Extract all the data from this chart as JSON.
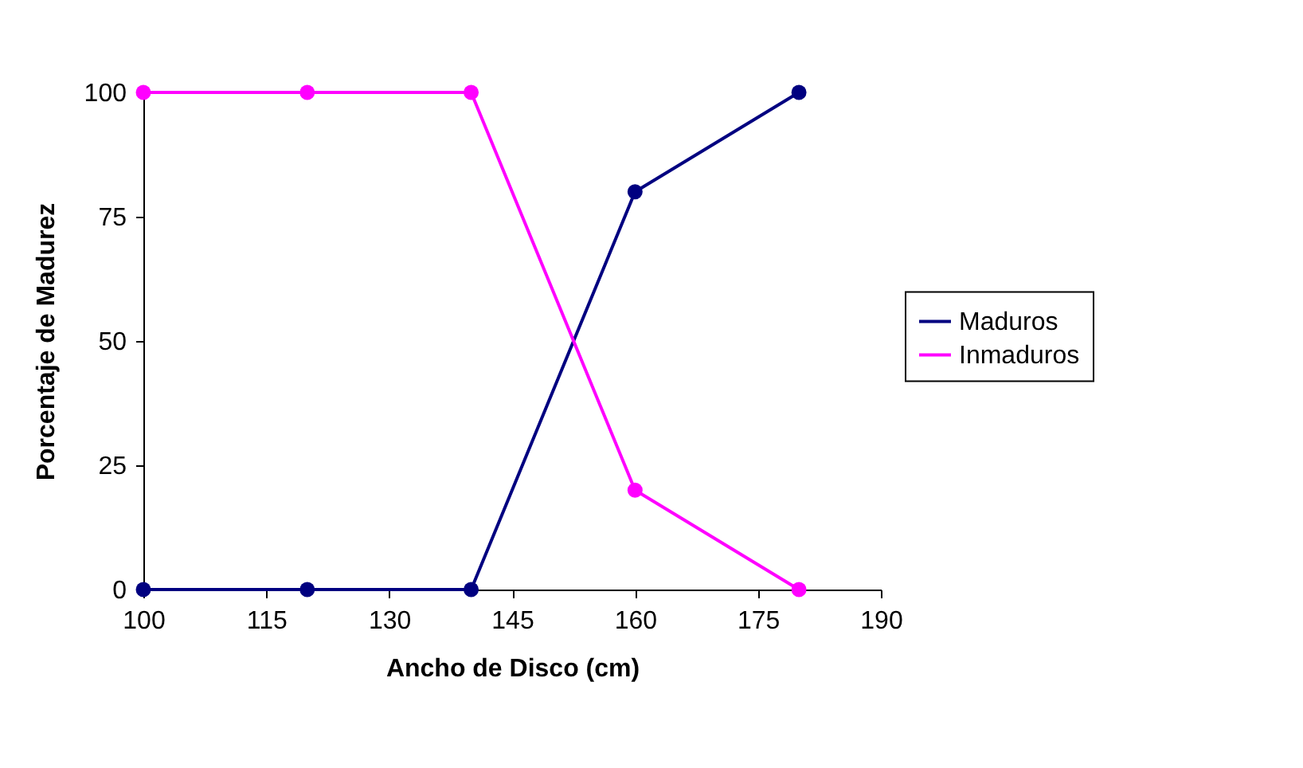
{
  "chart_data": {
    "type": "line",
    "xlabel": "Ancho de Disco (cm)",
    "ylabel": "Porcentaje de Madurez",
    "x": [
      100,
      120,
      140,
      160,
      180
    ],
    "series": [
      {
        "name": "Maduros",
        "color": "#000080",
        "values": [
          0,
          0,
          0,
          80,
          100
        ]
      },
      {
        "name": "Inmaduros",
        "color": "#ff00ff",
        "values": [
          100,
          100,
          100,
          20,
          0
        ]
      }
    ],
    "xlim": [
      100,
      190
    ],
    "xticks": [
      100,
      115,
      130,
      145,
      160,
      175,
      190
    ],
    "ylim": [
      0,
      100
    ],
    "yticks": [
      0,
      25,
      50,
      75,
      100
    ],
    "grid": false,
    "legend": "right",
    "marker": "circle",
    "line_style": "solid"
  }
}
